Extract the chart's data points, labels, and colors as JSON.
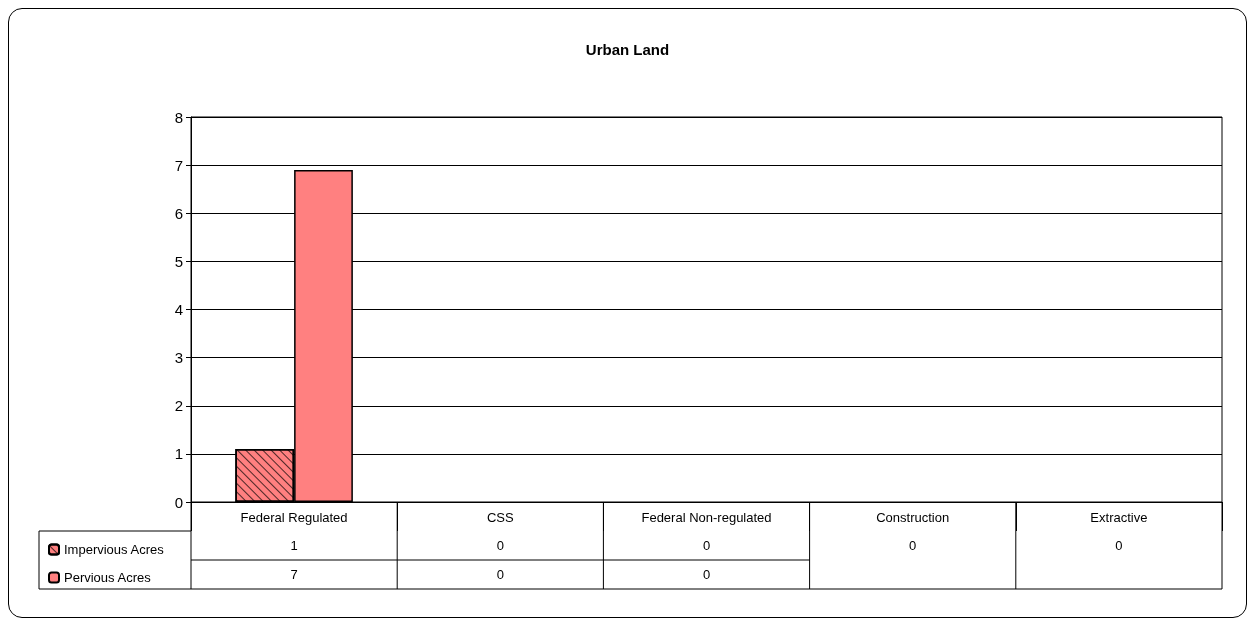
{
  "chart_data": {
    "type": "bar",
    "title": "Urban Land",
    "categories": [
      "Federal Regulated",
      "CSS",
      "Federal Non-regulated",
      "Construction",
      "Extractive"
    ],
    "series": [
      {
        "name": "Impervious Acres",
        "color": "#ff8080",
        "values": [
          1.1,
          0,
          0,
          0,
          0
        ],
        "value_labels": [
          "1",
          "0",
          "0",
          "0",
          "0"
        ]
      },
      {
        "name": "Pervious Acres",
        "color": "#ff8080",
        "values": [
          6.9,
          0,
          0,
          null,
          null
        ],
        "value_labels": [
          "7",
          "0",
          "0",
          null,
          null
        ]
      }
    ],
    "ylim": [
      0,
      8
    ],
    "yticks": [
      0,
      1,
      2,
      3,
      4,
      5,
      6,
      7,
      8
    ],
    "grid": "y",
    "legend": "bottom left"
  }
}
